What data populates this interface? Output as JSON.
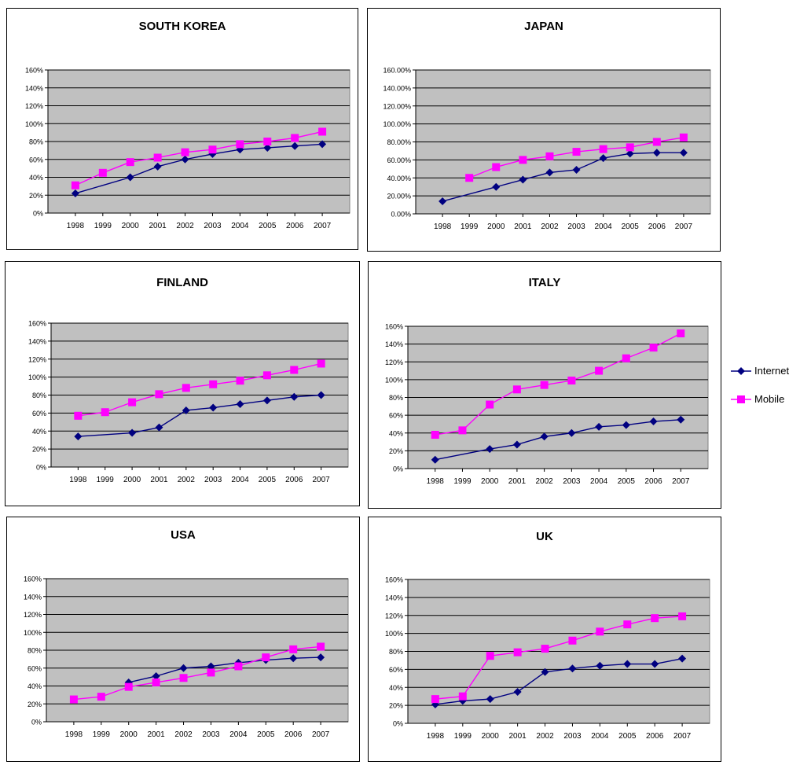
{
  "colors": {
    "plot_bg": "#c0c0c0",
    "grid": "#000000",
    "internet": "#000080",
    "mobile": "#ff00ff"
  },
  "legend": [
    {
      "name": "Internet",
      "color": "#000080",
      "marker": "diamond"
    },
    {
      "name": "Mobile",
      "color": "#ff00ff",
      "marker": "square"
    }
  ],
  "chart_data": [
    {
      "type": "line",
      "title": "SOUTH KOREA",
      "categories": [
        "1998",
        "1999",
        "2000",
        "2001",
        "2002",
        "2003",
        "2004",
        "2005",
        "2006",
        "2007"
      ],
      "ylim": [
        0,
        160
      ],
      "yticks": [
        "0%",
        "20%",
        "40%",
        "60%",
        "80%",
        "100%",
        "120%",
        "140%",
        "160%"
      ],
      "grid": true,
      "legend": "right",
      "series": [
        {
          "name": "Internet",
          "values": [
            22,
            null,
            40,
            52,
            60,
            66,
            71,
            73,
            75,
            77
          ]
        },
        {
          "name": "Mobile",
          "values": [
            31,
            45,
            57,
            62,
            68,
            71,
            77,
            80,
            84,
            91
          ]
        }
      ]
    },
    {
      "type": "line",
      "title": "JAPAN",
      "categories": [
        "1998",
        "1999",
        "2000",
        "2001",
        "2002",
        "2003",
        "2004",
        "2005",
        "2006",
        "2007"
      ],
      "ylim": [
        0,
        160
      ],
      "yticks": [
        "0.00%",
        "20.00%",
        "40.00%",
        "60.00%",
        "80.00%",
        "100.00%",
        "120.00%",
        "140.00%",
        "160.00%"
      ],
      "grid": true,
      "legend": "right",
      "series": [
        {
          "name": "Internet",
          "values": [
            14,
            null,
            30,
            38,
            46,
            49,
            62,
            67,
            68,
            68
          ]
        },
        {
          "name": "Mobile",
          "values": [
            null,
            40,
            52,
            60,
            64,
            69,
            72,
            74,
            80,
            85
          ]
        }
      ]
    },
    {
      "type": "line",
      "title": "FINLAND",
      "categories": [
        "1998",
        "1999",
        "2000",
        "2001",
        "2002",
        "2003",
        "2004",
        "2005",
        "2006",
        "2007"
      ],
      "ylim": [
        0,
        160
      ],
      "yticks": [
        "0%",
        "20%",
        "40%",
        "60%",
        "80%",
        "100%",
        "120%",
        "140%",
        "160%"
      ],
      "grid": true,
      "legend": "right",
      "series": [
        {
          "name": "Internet",
          "values": [
            34,
            null,
            38,
            44,
            63,
            66,
            70,
            74,
            78,
            80
          ]
        },
        {
          "name": "Mobile",
          "values": [
            57,
            61,
            72,
            81,
            88,
            92,
            96,
            102,
            108,
            115
          ]
        }
      ]
    },
    {
      "type": "line",
      "title": "ITALY",
      "categories": [
        "1998",
        "1999",
        "2000",
        "2001",
        "2002",
        "2003",
        "2004",
        "2005",
        "2006",
        "2007"
      ],
      "ylim": [
        0,
        160
      ],
      "yticks": [
        "0%",
        "20%",
        "40%",
        "60%",
        "80%",
        "100%",
        "120%",
        "140%",
        "160%"
      ],
      "grid": true,
      "legend": "right",
      "series": [
        {
          "name": "Internet",
          "values": [
            10,
            null,
            22,
            27,
            36,
            40,
            47,
            49,
            53,
            55
          ]
        },
        {
          "name": "Mobile",
          "values": [
            38,
            43,
            72,
            89,
            94,
            99,
            110,
            124,
            136,
            152
          ]
        }
      ]
    },
    {
      "type": "line",
      "title": "USA",
      "categories": [
        "1998",
        "1999",
        "2000",
        "2001",
        "2002",
        "2003",
        "2004",
        "2005",
        "2006",
        "2007"
      ],
      "ylim": [
        0,
        160
      ],
      "yticks": [
        "0%",
        "20%",
        "40%",
        "60%",
        "80%",
        "100%",
        "120%",
        "140%",
        "160%"
      ],
      "grid": true,
      "legend": "right",
      "series": [
        {
          "name": "Internet",
          "values": [
            null,
            null,
            44,
            51,
            60,
            62,
            66,
            69,
            71,
            72
          ]
        },
        {
          "name": "Mobile",
          "values": [
            25,
            28,
            39,
            44,
            49,
            55,
            62,
            72,
            81,
            84
          ]
        }
      ]
    },
    {
      "type": "line",
      "title": "UK",
      "categories": [
        "1998",
        "1999",
        "2000",
        "2001",
        "2002",
        "2003",
        "2004",
        "2005",
        "2006",
        "2007"
      ],
      "ylim": [
        0,
        160
      ],
      "yticks": [
        "0%",
        "20%",
        "40%",
        "60%",
        "80%",
        "100%",
        "120%",
        "140%",
        "160%"
      ],
      "grid": true,
      "legend": "right",
      "series": [
        {
          "name": "Internet",
          "values": [
            21,
            25,
            27,
            35,
            57,
            61,
            64,
            66,
            66,
            72
          ]
        },
        {
          "name": "Mobile",
          "values": [
            27,
            30,
            75,
            79,
            83,
            92,
            102,
            110,
            117,
            119
          ]
        }
      ]
    }
  ]
}
